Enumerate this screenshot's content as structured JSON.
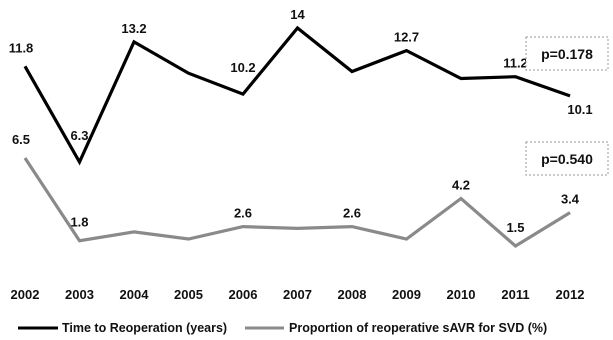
{
  "chart_data": {
    "type": "line",
    "x": [
      "2002",
      "2003",
      "2004",
      "2005",
      "2006",
      "2007",
      "2008",
      "2009",
      "2010",
      "2011",
      "2012"
    ],
    "series": [
      {
        "name": "Time to Reoperation (years)",
        "values": [
          11.8,
          6.3,
          13.2,
          11.4,
          10.2,
          14,
          11.5,
          12.7,
          11.1,
          11.2,
          10.1
        ],
        "labels": [
          "11.8",
          "6.3",
          "13.2",
          "",
          "10.2",
          "14",
          "",
          "12.7",
          "",
          "11.2",
          "10.1"
        ],
        "color": "#000000"
      },
      {
        "name": "Proportion of reoperative sAVR for SVD (%)",
        "values": [
          6.5,
          1.8,
          2.3,
          1.9,
          2.6,
          2.5,
          2.6,
          1.9,
          4.2,
          1.5,
          3.4
        ],
        "labels": [
          "6.5",
          "1.8",
          "",
          "",
          "2.6",
          "",
          "2.6",
          "",
          "4.2",
          "1.5",
          "3.4"
        ],
        "color": "#8a8a8a"
      }
    ],
    "annotations": [
      "p=0.178",
      "p=0.540"
    ],
    "legend_position": "bottom",
    "grid": false
  }
}
